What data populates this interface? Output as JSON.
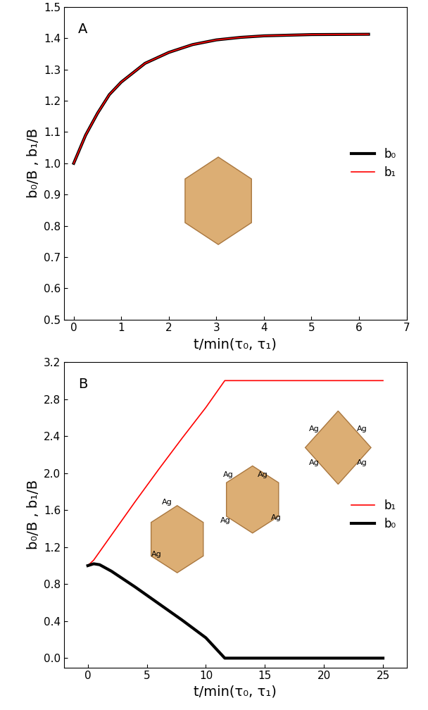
{
  "chart_data": [
    {
      "type": "line",
      "title": "A",
      "x_label": "t/min(τ₀, τ₁)",
      "y_label": "b₀/B , b₁/B",
      "xlim": [
        -0.2,
        7
      ],
      "xticks": [
        0,
        1,
        2,
        3,
        4,
        5,
        6,
        7
      ],
      "ylim": [
        0.5,
        1.5
      ],
      "yticks": [
        0.5,
        0.6,
        0.7,
        0.8,
        0.9,
        1.0,
        1.1,
        1.2,
        1.3,
        1.4,
        1.5
      ],
      "legend": "right",
      "series": [
        {
          "name": "b₀",
          "color": "#000000",
          "x": [
            0,
            0.25,
            0.5,
            0.75,
            1,
            1.5,
            2,
            2.5,
            3,
            3.5,
            4,
            5,
            6.2
          ],
          "values": [
            1.0,
            1.09,
            1.16,
            1.22,
            1.26,
            1.32,
            1.355,
            1.38,
            1.395,
            1.403,
            1.408,
            1.412,
            1.413
          ]
        },
        {
          "name": "b₁",
          "color": "#ff0000",
          "x": [
            0,
            0.25,
            0.5,
            0.75,
            1,
            1.5,
            2,
            2.5,
            3,
            3.5,
            4,
            5,
            6.2
          ],
          "values": [
            1.0,
            1.09,
            1.16,
            1.22,
            1.26,
            1.32,
            1.355,
            1.38,
            1.395,
            1.403,
            1.408,
            1.412,
            1.413
          ]
        }
      ],
      "annotations": []
    },
    {
      "type": "line",
      "title": "B",
      "x_label": "t/min(τ₀, τ₁)",
      "y_label": "b₀/B , b₁/B",
      "xlim": [
        -2,
        27
      ],
      "xticks": [
        0,
        5,
        10,
        15,
        20,
        25
      ],
      "ylim": [
        -0.1,
        3.2
      ],
      "yticks": [
        0.0,
        0.4,
        0.8,
        1.2,
        1.6,
        2.0,
        2.4,
        2.8,
        3.2
      ],
      "legend": "center right",
      "series": [
        {
          "name": "b₁",
          "color": "#ff0000",
          "x": [
            0,
            0.5,
            1,
            2,
            4,
            6,
            8,
            10,
            11.6,
            15,
            20,
            25
          ],
          "values": [
            1.0,
            1.06,
            1.15,
            1.33,
            1.69,
            2.04,
            2.38,
            2.71,
            3.0,
            3.0,
            3.0,
            3.0
          ]
        },
        {
          "name": "b₀",
          "color": "#000000",
          "x": [
            0,
            0.5,
            1,
            2,
            4,
            6,
            8,
            10,
            11.6,
            15,
            20,
            25
          ],
          "values": [
            1.0,
            1.02,
            1.01,
            0.94,
            0.77,
            0.59,
            0.41,
            0.22,
            0.0,
            0.0,
            0.0,
            0.0
          ]
        }
      ],
      "annotations": [
        "Ag",
        "Ag",
        "Ag",
        "Ag",
        "Ag",
        "Ag",
        "Ag",
        "Ag",
        "Ag",
        "Ag"
      ]
    }
  ]
}
